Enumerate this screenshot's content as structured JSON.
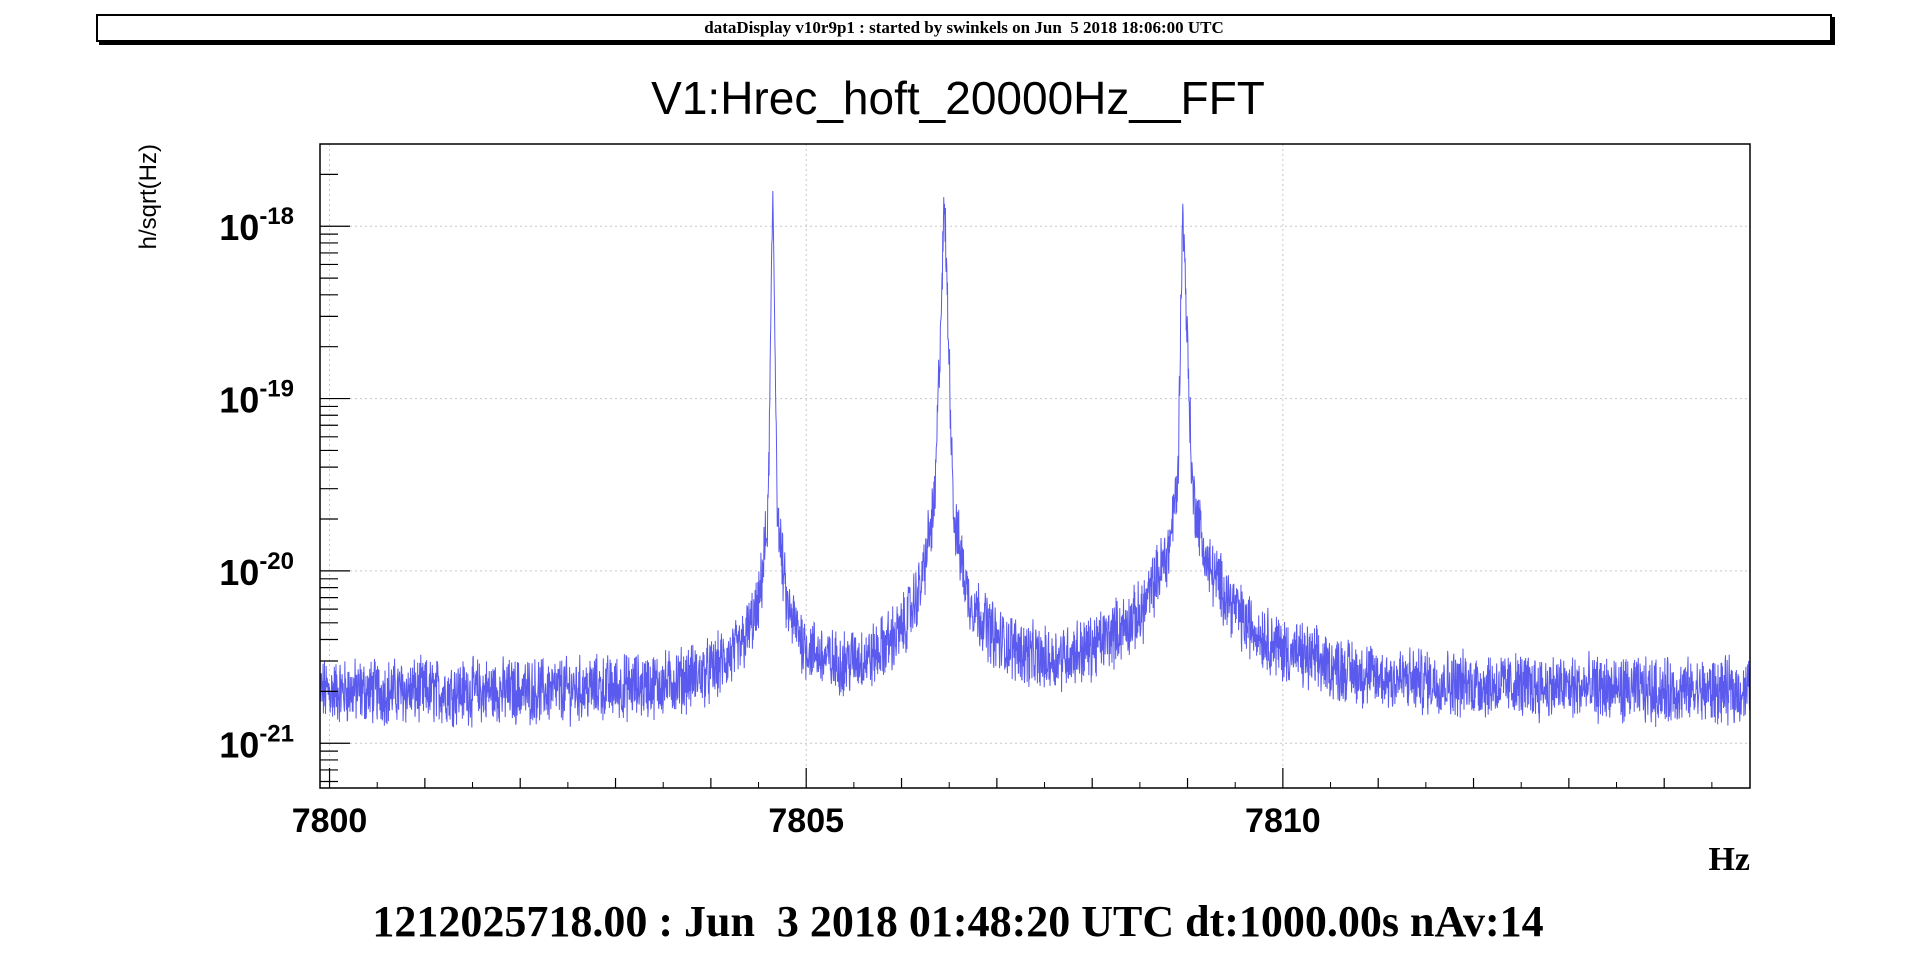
{
  "header": {
    "text": "dataDisplay v10r9p1 : started by swinkels on Jun  5 2018 18:06:00 UTC"
  },
  "footer": {
    "text": "1212025718.00 : Jun  3 2018 01:48:20 UTC dt:1000.00s nAv:14"
  },
  "colors": {
    "series": "#5a5aee",
    "grid": "#c8c8c8",
    "axis": "#000000"
  },
  "chart_data": {
    "type": "line",
    "title": "V1:Hrec_hoft_20000Hz__FFT",
    "xlabel": "Hz",
    "ylabel": "h/sqrt(Hz)",
    "xlim": [
      7799.9,
      7814.9
    ],
    "ylim": [
      5.5e-22,
      3e-18
    ],
    "yscale": "log",
    "grid": true,
    "x_ticks": [
      {
        "value": 7800,
        "label": "7800"
      },
      {
        "value": 7805,
        "label": "7805"
      },
      {
        "value": 7810,
        "label": "7810"
      }
    ],
    "y_ticks": [
      {
        "value": 1e-21,
        "base": "10",
        "exp": "-21"
      },
      {
        "value": 1e-20,
        "base": "10",
        "exp": "-20"
      },
      {
        "value": 1e-19,
        "base": "10",
        "exp": "-19"
      },
      {
        "value": 1e-18,
        "base": "10",
        "exp": "-18"
      }
    ],
    "series": [
      {
        "values_description_points": [
          [
            7800.0,
            2e-21
          ],
          [
            7801.0,
            2e-21
          ],
          [
            7802.0,
            2e-21
          ],
          [
            7803.0,
            2.1e-21
          ],
          [
            7803.5,
            2.2e-21
          ],
          [
            7804.0,
            2.6e-21
          ],
          [
            7804.3,
            3.5e-21
          ],
          [
            7804.5,
            6e-21
          ],
          [
            7804.6,
            2e-20
          ],
          [
            7804.65,
            1.6e-18
          ],
          [
            7804.7,
            2e-20
          ],
          [
            7804.8,
            6e-21
          ],
          [
            7805.0,
            3.6e-21
          ],
          [
            7805.3,
            2.9e-21
          ],
          [
            7805.7,
            3.2e-21
          ],
          [
            7806.0,
            4.5e-21
          ],
          [
            7806.2,
            8e-21
          ],
          [
            7806.35,
            2.5e-20
          ],
          [
            7806.45,
            1.35e-18
          ],
          [
            7806.55,
            2e-20
          ],
          [
            7806.7,
            7e-21
          ],
          [
            7807.0,
            4e-21
          ],
          [
            7807.5,
            3e-21
          ],
          [
            7808.0,
            3.6e-21
          ],
          [
            7808.5,
            5.5e-21
          ],
          [
            7808.8,
            1.3e-20
          ],
          [
            7808.9,
            3.5e-20
          ],
          [
            7808.95,
            1.35e-18
          ],
          [
            7809.05,
            3e-20
          ],
          [
            7809.2,
            1.1e-20
          ],
          [
            7809.6,
            5e-21
          ],
          [
            7810.0,
            3.5e-21
          ],
          [
            7810.5,
            2.8e-21
          ],
          [
            7811.0,
            2.4e-21
          ],
          [
            7812.0,
            2.2e-21
          ],
          [
            7813.0,
            2.1e-21
          ],
          [
            7814.0,
            2e-21
          ],
          [
            7814.9,
            2e-21
          ]
        ]
      }
    ]
  }
}
